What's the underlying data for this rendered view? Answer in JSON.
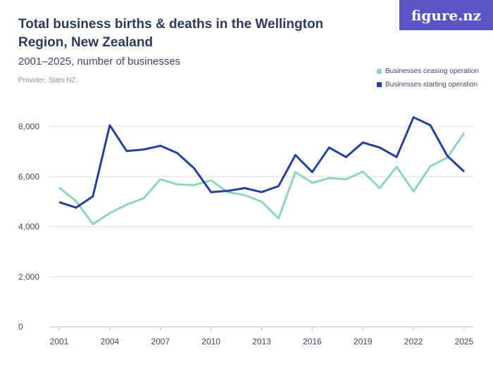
{
  "header": {
    "title": "Total business births & deaths in the Wellington Region, New Zealand",
    "subtitle": "2001–2025, number of businesses",
    "provider": "Provider: Stats NZ",
    "logo": "figure.nz"
  },
  "chart_data": {
    "type": "line",
    "title": "Total business births & deaths in the Wellington Region, New Zealand",
    "subtitle": "2001–2025, number of businesses",
    "x": [
      2001,
      2002,
      2003,
      2004,
      2005,
      2006,
      2007,
      2008,
      2009,
      2010,
      2011,
      2012,
      2013,
      2014,
      2015,
      2016,
      2017,
      2018,
      2019,
      2020,
      2021,
      2022,
      2023,
      2024,
      2025
    ],
    "xticks": [
      "2001",
      "2004",
      "2007",
      "2010",
      "2013",
      "2016",
      "2019",
      "2022",
      "2025"
    ],
    "yticks": [
      "0",
      "2,000",
      "4,000",
      "6,000",
      "8,000"
    ],
    "ylim": [
      0,
      8500
    ],
    "grid": true,
    "legend_placement": "top-right",
    "series": [
      {
        "name": "Businesses ceasing operation",
        "color": "#8fd5b6",
        "values": [
          5560,
          5020,
          4100,
          4540,
          4880,
          5130,
          5890,
          5690,
          5660,
          5850,
          5380,
          5260,
          5000,
          4330,
          6180,
          5750,
          5940,
          5890,
          6200,
          5540,
          6390,
          5410,
          6410,
          6760,
          7740
        ]
      },
      {
        "name": "Businesses starting operation",
        "color": "#24409a",
        "values": [
          4980,
          4760,
          5210,
          8050,
          7020,
          7080,
          7230,
          6940,
          6330,
          5380,
          5430,
          5540,
          5380,
          5620,
          6860,
          6180,
          7160,
          6780,
          7360,
          7160,
          6780,
          8370,
          8050,
          6830,
          6200
        ]
      }
    ]
  }
}
